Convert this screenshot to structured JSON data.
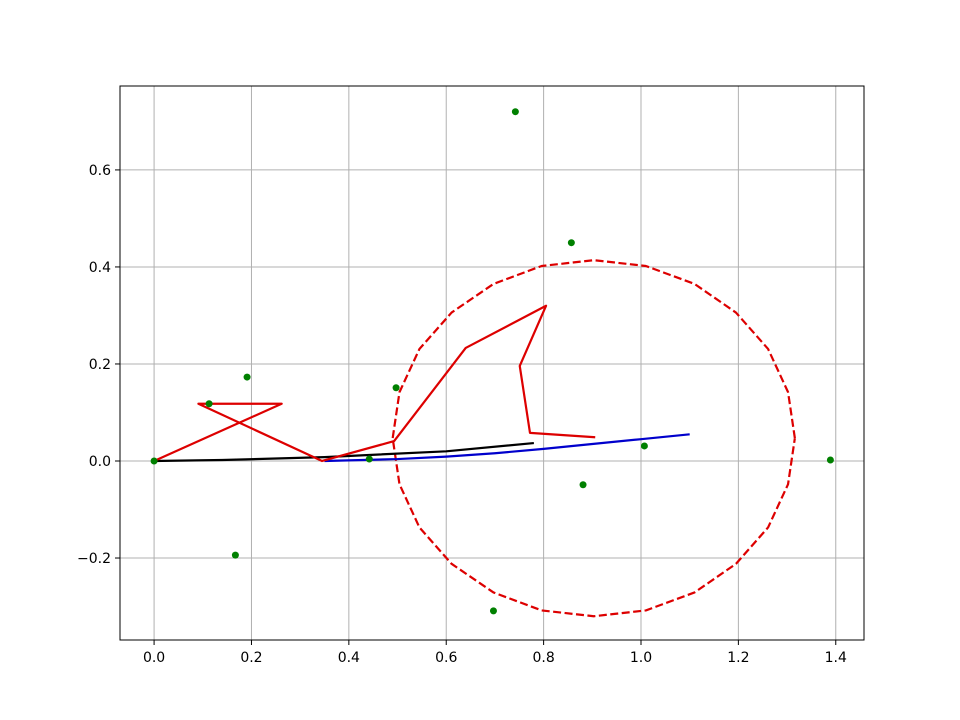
{
  "chart_data": {
    "type": "line",
    "xlim": [
      -0.07,
      1.458
    ],
    "ylim": [
      -0.369,
      0.773
    ],
    "xticks": [
      {
        "value": 0,
        "label": "0.0"
      },
      0.2,
      0.4,
      0.6,
      0.8,
      {
        "value": 1,
        "label": "1.0"
      },
      1.2,
      1.4
    ],
    "yticks": [
      {
        "value": -0.2,
        "label": "−0.2"
      },
      {
        "value": 0,
        "label": "0.0"
      },
      0.2,
      0.4,
      0.6
    ],
    "grid": true,
    "series": [
      {
        "color": "#dd0000",
        "linestyle": "dashed",
        "x": [
          1.316,
          1.302,
          1.261,
          1.195,
          1.11,
          1.01,
          0.903,
          0.796,
          0.697,
          0.611,
          0.545,
          0.504,
          0.49,
          0.504,
          0.545,
          0.611,
          0.697,
          0.796,
          0.903,
          1.01,
          1.11,
          1.195,
          1.261,
          1.302,
          1.316
        ],
        "values": [
          0.047,
          0.142,
          0.231,
          0.306,
          0.365,
          0.402,
          0.414,
          0.402,
          0.365,
          0.306,
          0.231,
          0.142,
          0.047,
          -0.048,
          -0.137,
          -0.212,
          -0.271,
          -0.308,
          -0.32,
          -0.308,
          -0.271,
          -0.212,
          -0.137,
          -0.048,
          0.047
        ]
      },
      {
        "color": "#0000cc",
        "linestyle": "solid",
        "x": [
          0.35,
          0.5,
          0.6,
          0.7,
          0.8,
          0.9,
          1.0,
          1.1
        ],
        "values": [
          0,
          0.004,
          0.009,
          0.016,
          0.025,
          0.035,
          0.045,
          0.055
        ]
      },
      {
        "color": "#000000",
        "linestyle": "solid",
        "x": [
          0,
          0.14,
          0.35,
          0.6,
          0.78
        ],
        "values": [
          0,
          0.002,
          0.008,
          0.02,
          0.037
        ]
      },
      {
        "color": "#dd0000",
        "linestyle": "solid",
        "x": [
          0,
          0.262,
          0.091,
          0.345,
          0.493,
          0.64,
          0.805,
          0.751,
          0.772,
          0.906
        ],
        "values": [
          0,
          0.118,
          0.118,
          0,
          0.041,
          0.233,
          0.32,
          0.196,
          0.058,
          0.049
        ]
      },
      {
        "color": "#008000",
        "linestyle": "markers",
        "x": [
          0,
          0.113,
          0.191,
          0.167,
          0.442,
          0.497,
          0.742,
          0.857,
          0.697,
          0.881,
          1.007,
          1.389
        ],
        "values": [
          0,
          0.118,
          0.173,
          -0.194,
          0.004,
          0.151,
          0.72,
          0.45,
          -0.309,
          -0.049,
          0.031,
          0.002
        ]
      }
    ]
  }
}
